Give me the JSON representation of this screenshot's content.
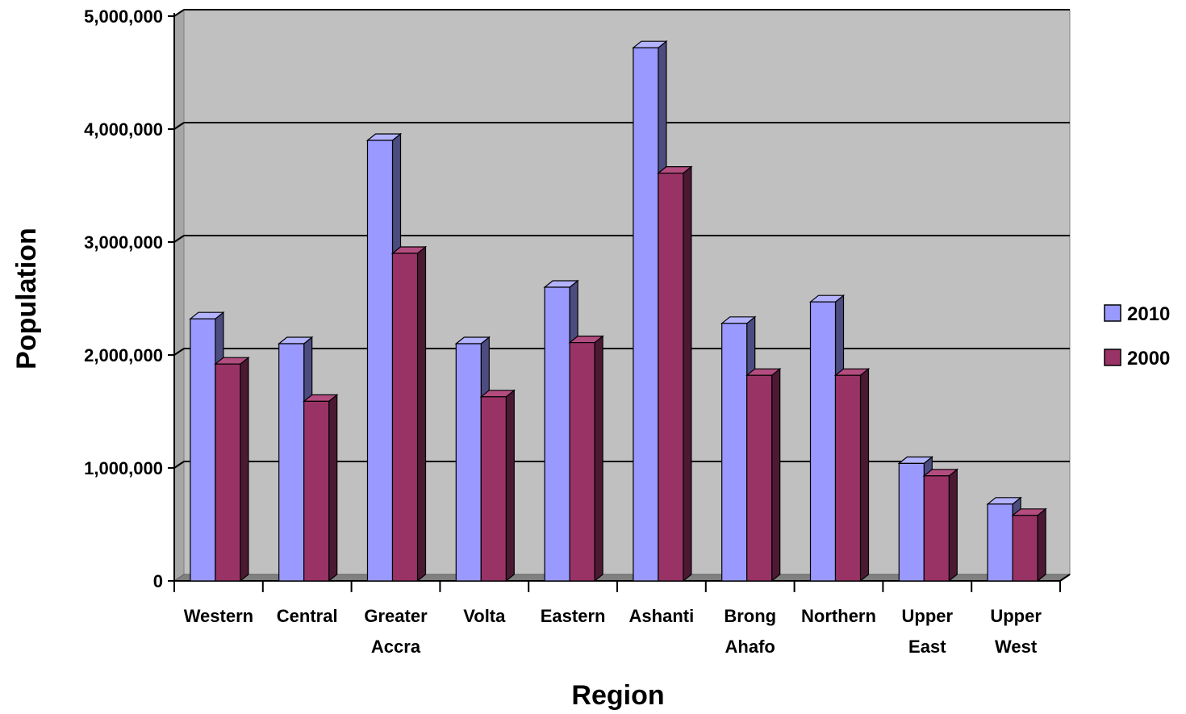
{
  "chart_data": {
    "type": "bar",
    "style": "3d-clustered-column",
    "categories": [
      [
        "Western"
      ],
      [
        "Central"
      ],
      [
        "Greater",
        "Accra"
      ],
      [
        "Volta"
      ],
      [
        "Eastern"
      ],
      [
        "Ashanti"
      ],
      [
        "Brong",
        "Ahafo"
      ],
      [
        "Northern"
      ],
      [
        "Upper",
        "East"
      ],
      [
        "Upper",
        "West"
      ]
    ],
    "series": [
      {
        "name": "2010",
        "color": "#9999ff",
        "side_color": "#4c4c80",
        "top_color": "#b3b3ff",
        "values": [
          2320000,
          2100000,
          3900000,
          2100000,
          2600000,
          4720000,
          2280000,
          2470000,
          1040000,
          680000
        ]
      },
      {
        "name": "2000",
        "color": "#993366",
        "side_color": "#4c1933",
        "top_color": "#b34d80",
        "values": [
          1920000,
          1590000,
          2900000,
          1630000,
          2110000,
          3610000,
          1820000,
          1820000,
          930000,
          580000
        ]
      }
    ],
    "xlabel": "Region",
    "ylabel": "Population",
    "ylim": [
      0,
      5000000
    ],
    "yticks": [
      0,
      1000000,
      2000000,
      3000000,
      4000000,
      5000000
    ],
    "ytick_labels": [
      "0",
      "1,000,000",
      "2,000,000",
      "3,000,000",
      "4,000,000",
      "5,000,000"
    ],
    "grid": true,
    "legend_position": "right",
    "plot_background": "#c0c0c0"
  }
}
